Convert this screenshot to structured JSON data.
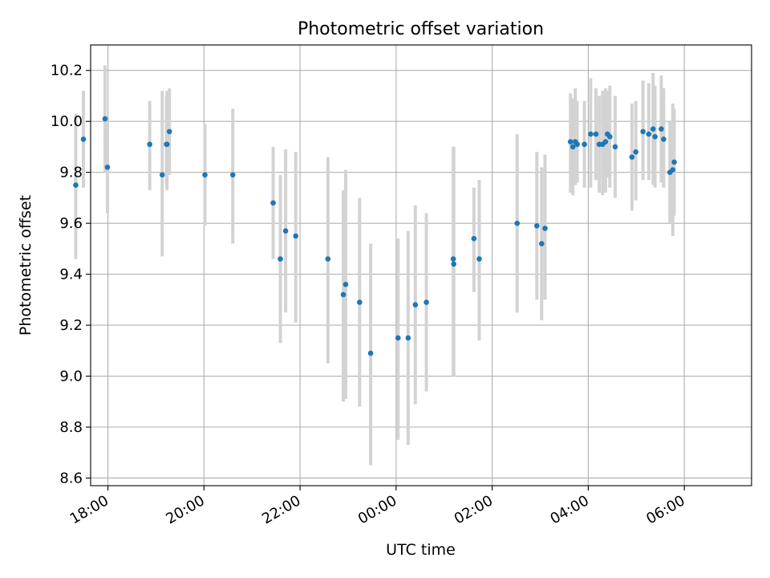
{
  "chart_data": {
    "type": "scatter",
    "title": "Photometric offset variation",
    "xlabel": "UTC time",
    "ylabel": "Photometric offset",
    "xlim_hours": [
      -6.36,
      7.4
    ],
    "ylim": [
      8.57,
      10.3
    ],
    "grid": true,
    "marker_color": "#1f77b4",
    "errorbar_color": "#d3d3d3",
    "x_ticks": [
      {
        "hours": -6,
        "label": "18:00"
      },
      {
        "hours": -4,
        "label": "20:00"
      },
      {
        "hours": -2,
        "label": "22:00"
      },
      {
        "hours": 0,
        "label": "00:00"
      },
      {
        "hours": 2,
        "label": "02:00"
      },
      {
        "hours": 4,
        "label": "04:00"
      },
      {
        "hours": 6,
        "label": "06:00"
      }
    ],
    "y_ticks": [
      {
        "value": 8.6,
        "label": "8.6"
      },
      {
        "value": 8.8,
        "label": "8.8"
      },
      {
        "value": 9.0,
        "label": "9.0"
      },
      {
        "value": 9.2,
        "label": "9.2"
      },
      {
        "value": 9.4,
        "label": "9.4"
      },
      {
        "value": 9.6,
        "label": "9.6"
      },
      {
        "value": 9.8,
        "label": "9.8"
      },
      {
        "value": 10.0,
        "label": "10.0"
      },
      {
        "value": 10.2,
        "label": "10.2"
      }
    ],
    "points": [
      {
        "t": -6.67,
        "y": 9.75,
        "lo": 9.46,
        "hi": 10.03
      },
      {
        "t": -6.51,
        "y": 9.93,
        "lo": 9.74,
        "hi": 10.12
      },
      {
        "t": -6.06,
        "y": 10.01,
        "lo": 9.8,
        "hi": 10.22
      },
      {
        "t": -6.01,
        "y": 9.82,
        "lo": 9.64,
        "hi": 10.02
      },
      {
        "t": -5.13,
        "y": 9.91,
        "lo": 9.73,
        "hi": 10.08
      },
      {
        "t": -4.87,
        "y": 9.79,
        "lo": 9.47,
        "hi": 10.12
      },
      {
        "t": -4.78,
        "y": 9.91,
        "lo": 9.75,
        "hi": 10.1
      },
      {
        "t": -4.77,
        "y": 9.91,
        "lo": 9.73,
        "hi": 10.12
      },
      {
        "t": -4.72,
        "y": 9.96,
        "lo": 9.79,
        "hi": 10.13
      },
      {
        "t": -3.98,
        "y": 9.79,
        "lo": 9.59,
        "hi": 9.99
      },
      {
        "t": -3.4,
        "y": 9.79,
        "lo": 9.52,
        "hi": 10.05
      },
      {
        "t": -2.56,
        "y": 9.68,
        "lo": 9.46,
        "hi": 9.9
      },
      {
        "t": -2.41,
        "y": 9.46,
        "lo": 9.13,
        "hi": 9.79
      },
      {
        "t": -2.3,
        "y": 9.57,
        "lo": 9.25,
        "hi": 9.89
      },
      {
        "t": -2.09,
        "y": 9.55,
        "lo": 9.21,
        "hi": 9.88
      },
      {
        "t": -1.42,
        "y": 9.46,
        "lo": 9.05,
        "hi": 9.86
      },
      {
        "t": -1.1,
        "y": 9.32,
        "lo": 8.9,
        "hi": 9.73
      },
      {
        "t": -1.05,
        "y": 9.36,
        "lo": 8.91,
        "hi": 9.81
      },
      {
        "t": -0.76,
        "y": 9.29,
        "lo": 8.88,
        "hi": 9.7
      },
      {
        "t": -0.53,
        "y": 9.09,
        "lo": 8.65,
        "hi": 9.52
      },
      {
        "t": 0.04,
        "y": 9.15,
        "lo": 8.75,
        "hi": 9.54
      },
      {
        "t": 0.25,
        "y": 9.15,
        "lo": 8.73,
        "hi": 9.57
      },
      {
        "t": 0.4,
        "y": 9.28,
        "lo": 8.89,
        "hi": 9.67
      },
      {
        "t": 0.63,
        "y": 9.29,
        "lo": 8.94,
        "hi": 9.64
      },
      {
        "t": 1.19,
        "y": 9.46,
        "lo": 9.0,
        "hi": 9.9
      },
      {
        "t": 1.2,
        "y": 9.44,
        "lo": 9.0,
        "hi": 9.9
      },
      {
        "t": 1.62,
        "y": 9.54,
        "lo": 9.33,
        "hi": 9.74
      },
      {
        "t": 1.73,
        "y": 9.46,
        "lo": 9.14,
        "hi": 9.77
      },
      {
        "t": 2.52,
        "y": 9.6,
        "lo": 9.25,
        "hi": 9.95
      },
      {
        "t": 2.93,
        "y": 9.59,
        "lo": 9.3,
        "hi": 9.88
      },
      {
        "t": 3.03,
        "y": 9.52,
        "lo": 9.22,
        "hi": 9.82
      },
      {
        "t": 3.1,
        "y": 9.58,
        "lo": 9.3,
        "hi": 9.87
      },
      {
        "t": 3.63,
        "y": 9.92,
        "lo": 9.72,
        "hi": 10.11
      },
      {
        "t": 3.68,
        "y": 9.9,
        "lo": 9.71,
        "hi": 10.09
      },
      {
        "t": 3.73,
        "y": 9.92,
        "lo": 9.75,
        "hi": 10.13
      },
      {
        "t": 3.77,
        "y": 9.91,
        "lo": 9.76,
        "hi": 10.08
      },
      {
        "t": 3.92,
        "y": 9.91,
        "lo": 9.74,
        "hi": 10.08
      },
      {
        "t": 4.05,
        "y": 9.95,
        "lo": 9.74,
        "hi": 10.17
      },
      {
        "t": 4.16,
        "y": 9.95,
        "lo": 9.77,
        "hi": 10.13
      },
      {
        "t": 4.23,
        "y": 9.91,
        "lo": 9.72,
        "hi": 10.1
      },
      {
        "t": 4.3,
        "y": 9.91,
        "lo": 9.71,
        "hi": 10.12
      },
      {
        "t": 4.36,
        "y": 9.92,
        "lo": 9.72,
        "hi": 10.13
      },
      {
        "t": 4.4,
        "y": 9.95,
        "lo": 9.78,
        "hi": 10.12
      },
      {
        "t": 4.45,
        "y": 9.94,
        "lo": 9.74,
        "hi": 10.14
      },
      {
        "t": 4.56,
        "y": 9.9,
        "lo": 9.7,
        "hi": 10.1
      },
      {
        "t": 4.91,
        "y": 9.86,
        "lo": 9.65,
        "hi": 10.07
      },
      {
        "t": 4.99,
        "y": 9.88,
        "lo": 9.69,
        "hi": 10.08
      },
      {
        "t": 5.14,
        "y": 9.96,
        "lo": 9.77,
        "hi": 10.16
      },
      {
        "t": 5.26,
        "y": 9.95,
        "lo": 9.77,
        "hi": 10.15
      },
      {
        "t": 5.35,
        "y": 9.97,
        "lo": 9.75,
        "hi": 10.19
      },
      {
        "t": 5.39,
        "y": 9.94,
        "lo": 9.74,
        "hi": 10.14
      },
      {
        "t": 5.52,
        "y": 9.97,
        "lo": 9.76,
        "hi": 10.18
      },
      {
        "t": 5.57,
        "y": 9.93,
        "lo": 9.74,
        "hi": 10.13
      },
      {
        "t": 5.7,
        "y": 9.8,
        "lo": 9.6,
        "hi": 10.0
      },
      {
        "t": 5.76,
        "y": 9.81,
        "lo": 9.55,
        "hi": 10.07
      },
      {
        "t": 5.79,
        "y": 9.84,
        "lo": 9.63,
        "hi": 10.05
      }
    ]
  }
}
